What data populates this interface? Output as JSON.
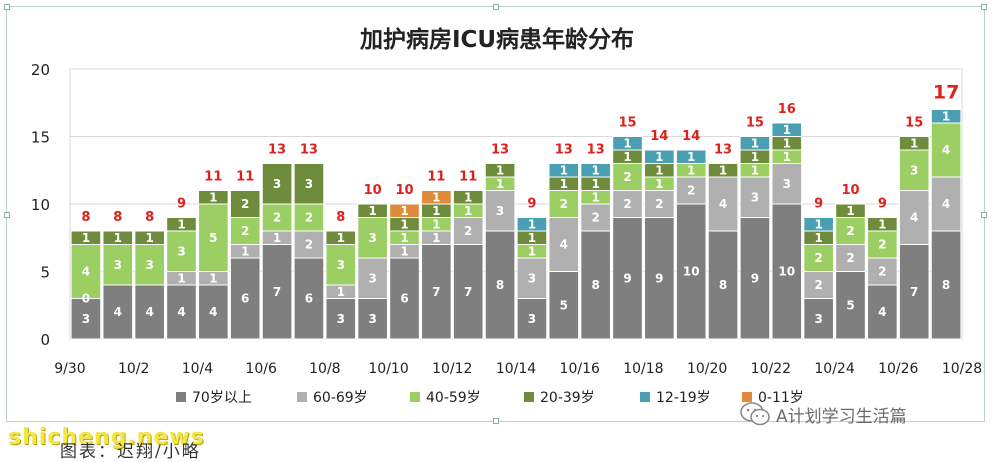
{
  "chart_data": {
    "type": "bar",
    "stacked": true,
    "title": "加护病房ICU病患年龄分布",
    "ylim": [
      0,
      20
    ],
    "yticks": [
      0,
      5,
      10,
      15,
      20
    ],
    "grid": "horizontal",
    "legend_position": "bottom",
    "categories": [
      "9/30",
      "10/1",
      "10/2",
      "10/3",
      "10/4",
      "10/5",
      "10/6",
      "10/7",
      "10/8",
      "10/9",
      "10/10",
      "10/11",
      "10/12",
      "10/13",
      "10/14",
      "10/15",
      "10/16",
      "10/17",
      "10/18",
      "10/19",
      "10/20",
      "10/21",
      "10/22",
      "10/23",
      "10/24",
      "10/25",
      "10/26",
      "10/27"
    ],
    "x_tick_labels": [
      "9/30",
      "",
      "10/2",
      "",
      "10/4",
      "",
      "10/6",
      "",
      "10/8",
      "",
      "10/10",
      "",
      "10/12",
      "",
      "10/14",
      "",
      "10/16",
      "",
      "10/18",
      "",
      "10/20",
      "",
      "10/22",
      "",
      "10/24",
      "",
      "10/26",
      "",
      "10/28"
    ],
    "series": [
      {
        "name": "70岁以上",
        "color": "#7f7f7f",
        "values": [
          3,
          4,
          4,
          4,
          4,
          6,
          7,
          6,
          3,
          3,
          6,
          7,
          7,
          8,
          3,
          5,
          8,
          9,
          9,
          10,
          8,
          9,
          10,
          3,
          5,
          4,
          7,
          8
        ]
      },
      {
        "name": "60-69岁",
        "color": "#b0b0b0",
        "values": [
          0,
          0,
          0,
          1,
          1,
          1,
          1,
          2,
          1,
          3,
          1,
          1,
          2,
          3,
          3,
          4,
          2,
          2,
          2,
          2,
          4,
          3,
          3,
          2,
          2,
          2,
          4,
          4
        ]
      },
      {
        "name": "40-59岁",
        "color": "#9ccf63",
        "values": [
          4,
          3,
          3,
          3,
          5,
          2,
          2,
          2,
          3,
          3,
          1,
          1,
          1,
          1,
          1,
          2,
          1,
          2,
          1,
          1,
          0,
          1,
          1,
          2,
          2,
          2,
          3,
          4
        ]
      },
      {
        "name": "20-39岁",
        "color": "#6e8c3c",
        "values": [
          1,
          1,
          1,
          1,
          1,
          2,
          3,
          3,
          1,
          1,
          1,
          1,
          1,
          1,
          1,
          1,
          1,
          1,
          1,
          0,
          1,
          1,
          1,
          1,
          1,
          1,
          1,
          0
        ]
      },
      {
        "name": "12-19岁",
        "color": "#4a9fb3",
        "values": [
          0,
          0,
          0,
          0,
          0,
          0,
          0,
          0,
          0,
          0,
          0,
          0,
          0,
          0,
          1,
          1,
          1,
          1,
          1,
          1,
          0,
          1,
          1,
          1,
          0,
          0,
          0,
          1
        ]
      },
      {
        "name": "0-11岁",
        "color": "#e08a3c",
        "values": [
          0,
          0,
          0,
          0,
          0,
          0,
          0,
          0,
          0,
          0,
          1,
          1,
          0,
          0,
          0,
          0,
          0,
          0,
          0,
          0,
          0,
          0,
          0,
          0,
          0,
          0,
          0,
          0
        ]
      }
    ],
    "totals": [
      8,
      8,
      8,
      9,
      11,
      11,
      13,
      13,
      8,
      10,
      10,
      11,
      11,
      13,
      9,
      13,
      13,
      15,
      14,
      14,
      13,
      15,
      16,
      9,
      10,
      9,
      15,
      17
    ],
    "segment_labels": [
      [
        "3",
        "0",
        "4",
        "1",
        "",
        ""
      ],
      [
        "4",
        "",
        "3",
        "1",
        "",
        ""
      ],
      [
        "4",
        "",
        "3",
        "1",
        "",
        ""
      ],
      [
        "4",
        "1",
        "3",
        "1",
        "",
        ""
      ],
      [
        "4",
        "1",
        "5",
        "1",
        "",
        ""
      ],
      [
        "6",
        "1",
        "2",
        "2",
        "",
        ""
      ],
      [
        "7",
        "1",
        "2",
        "3",
        "",
        ""
      ],
      [
        "6",
        "2",
        "2",
        "3",
        "",
        ""
      ],
      [
        "3",
        "1",
        "3",
        "1",
        "",
        ""
      ],
      [
        "3",
        "3",
        "3",
        "1",
        "",
        ""
      ],
      [
        "6",
        "1",
        "1",
        "1",
        "",
        "1"
      ],
      [
        "7",
        "1",
        "1",
        "1",
        "",
        "1"
      ],
      [
        "7",
        "2",
        "1",
        "1",
        "",
        ""
      ],
      [
        "8",
        "3",
        "1",
        "1",
        "",
        ""
      ],
      [
        "3",
        "3",
        "1",
        "1",
        "1",
        ""
      ],
      [
        "5",
        "4",
        "2",
        "1",
        "1",
        ""
      ],
      [
        "8",
        "2",
        "1",
        "1",
        "1",
        ""
      ],
      [
        "9",
        "2",
        "2",
        "1",
        "1",
        ""
      ],
      [
        "9",
        "2",
        "1",
        "1",
        "1",
        ""
      ],
      [
        "10",
        "2",
        "1",
        "",
        "1",
        ""
      ],
      [
        "8",
        "4",
        "",
        "1",
        "",
        ""
      ],
      [
        "9",
        "3",
        "1",
        "1",
        "1",
        ""
      ],
      [
        "10",
        "3",
        "1",
        "1",
        "1",
        ""
      ],
      [
        "3",
        "2",
        "2",
        "1",
        "1",
        ""
      ],
      [
        "5",
        "2",
        "2",
        "1",
        "",
        ""
      ],
      [
        "4",
        "2",
        "2",
        "1",
        "",
        ""
      ],
      [
        "7",
        "4",
        "3",
        "1",
        "",
        ""
      ],
      [
        "8",
        "4",
        "4",
        "",
        "1",
        ""
      ]
    ],
    "highlight_last_total": true,
    "total_label_color": "#e0201b"
  },
  "footer": {
    "watermark": "shicheng.news",
    "caption": "图表：迟翔/小略",
    "wechat_account": "A计划学习生活篇"
  }
}
